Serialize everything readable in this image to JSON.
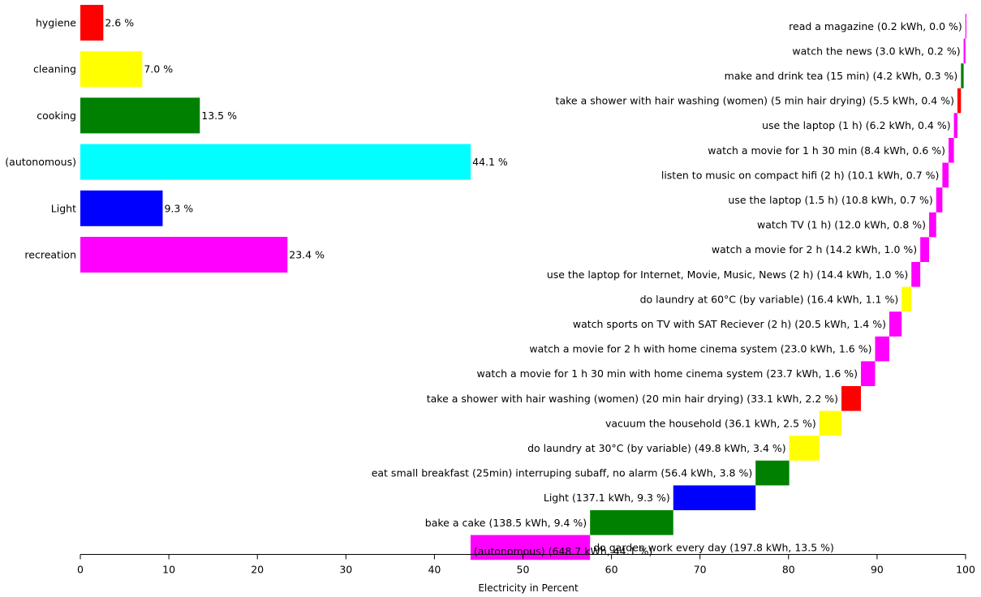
{
  "chart_data": [
    {
      "type": "bar",
      "orientation": "horizontal",
      "title": "",
      "categories": [
        "hygiene",
        "cleaning",
        "cooking",
        "(autonomous)",
        "Light",
        "recreation"
      ],
      "values": [
        2.6,
        7.0,
        13.5,
        44.1,
        9.3,
        23.4
      ],
      "value_labels": [
        "2.6 %",
        "7.0 %",
        "13.5 %",
        "44.1 %",
        "9.3 %",
        "23.4 %"
      ],
      "colors": [
        "#ff0000",
        "#ffff00",
        "#008000",
        "#00ffff",
        "#0000ff",
        "#ff00ff"
      ],
      "xlim": [
        0,
        100
      ]
    },
    {
      "type": "bar",
      "subtype": "waterfall",
      "orientation": "horizontal",
      "title": "",
      "xlabel": "Electricity in Percent",
      "xlim": [
        0,
        100
      ],
      "xticks": [
        "0",
        "10",
        "20",
        "30",
        "40",
        "50",
        "60",
        "70",
        "80",
        "90",
        "100"
      ],
      "grid": false,
      "segments": [
        {
          "label": "read a magazine (0.2 kWh, 0.0 %)",
          "kwh": 0.2,
          "percent": 0.02,
          "color": "#ff00ff"
        },
        {
          "label": "watch the news (3.0 kWh, 0.2 %)",
          "kwh": 3.0,
          "percent": 0.2,
          "color": "#ff00ff"
        },
        {
          "label": "make and drink tea (15 min) (4.2 kWh, 0.3 %)",
          "kwh": 4.2,
          "percent": 0.3,
          "color": "#008000"
        },
        {
          "label": "take a shower with hair washing (women) (5 min hair drying) (5.5 kWh, 0.4 %)",
          "kwh": 5.5,
          "percent": 0.4,
          "color": "#ff0000"
        },
        {
          "label": "use the laptop (1 h) (6.2 kWh, 0.4 %)",
          "kwh": 6.2,
          "percent": 0.4,
          "color": "#ff00ff"
        },
        {
          "label": "watch a movie for 1 h 30 min (8.4 kWh, 0.6 %)",
          "kwh": 8.4,
          "percent": 0.6,
          "color": "#ff00ff"
        },
        {
          "label": "listen to music on compact hifi (2 h) (10.1 kWh, 0.7 %)",
          "kwh": 10.1,
          "percent": 0.7,
          "color": "#ff00ff"
        },
        {
          "label": "use the laptop (1.5 h) (10.8 kWh, 0.7 %)",
          "kwh": 10.8,
          "percent": 0.7,
          "color": "#ff00ff"
        },
        {
          "label": "watch TV (1 h) (12.0 kWh, 0.8 %)",
          "kwh": 12.0,
          "percent": 0.8,
          "color": "#ff00ff"
        },
        {
          "label": "watch a movie for 2 h (14.2 kWh, 1.0 %)",
          "kwh": 14.2,
          "percent": 1.0,
          "color": "#ff00ff"
        },
        {
          "label": "use the laptop for Internet, Movie, Music, News (2 h) (14.4 kWh, 1.0 %)",
          "kwh": 14.4,
          "percent": 1.0,
          "color": "#ff00ff"
        },
        {
          "label": "do laundry at 60°C (by variable) (16.4 kWh, 1.1 %)",
          "kwh": 16.4,
          "percent": 1.1,
          "color": "#ffff00"
        },
        {
          "label": "watch sports on TV with SAT Reciever (2 h) (20.5 kWh, 1.4 %)",
          "kwh": 20.5,
          "percent": 1.4,
          "color": "#ff00ff"
        },
        {
          "label": "watch a movie for 2 h with home cinema system (23.0 kWh, 1.6 %)",
          "kwh": 23.0,
          "percent": 1.6,
          "color": "#ff00ff"
        },
        {
          "label": "watch a movie for 1 h 30 min with home cinema system (23.7 kWh, 1.6 %)",
          "kwh": 23.7,
          "percent": 1.6,
          "color": "#ff00ff"
        },
        {
          "label": "take a shower with hair washing (women) (20 min hair drying) (33.1 kWh, 2.2 %)",
          "kwh": 33.1,
          "percent": 2.2,
          "color": "#ff0000"
        },
        {
          "label": "vacuum the household (36.1 kWh, 2.5 %)",
          "kwh": 36.1,
          "percent": 2.5,
          "color": "#ffff00"
        },
        {
          "label": "do laundry at 30°C (by variable) (49.8 kWh, 3.4 %)",
          "kwh": 49.8,
          "percent": 3.4,
          "color": "#ffff00"
        },
        {
          "label": "eat small breakfast (25min) interruping subaff, no alarm (56.4 kWh, 3.8 %)",
          "kwh": 56.4,
          "percent": 3.8,
          "color": "#008000"
        },
        {
          "label": "Light (137.1 kWh, 9.3 %)",
          "kwh": 137.1,
          "percent": 9.3,
          "color": "#0000ff"
        },
        {
          "label": "bake a cake (138.5 kWh, 9.4 %)",
          "kwh": 138.5,
          "percent": 9.4,
          "color": "#008000"
        },
        {
          "label": "do garden work every day (197.8 kWh, 13.5 %)",
          "kwh": 197.8,
          "percent": 13.5,
          "color": "#ff00ff"
        },
        {
          "label": "(autonomous) (648.7 kWh, 44.1 %)",
          "kwh": 648.7,
          "percent": 44.1,
          "color": "#00ffff"
        }
      ]
    }
  ]
}
